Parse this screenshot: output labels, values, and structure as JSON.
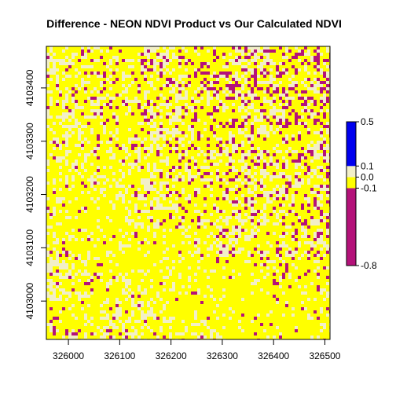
{
  "chart_data": {
    "type": "heatmap",
    "title": "Difference - NEON NDVI Product vs Our Calculated NDVI",
    "xlabel": "",
    "ylabel": "",
    "x_ticks": [
      326000,
      326100,
      326200,
      326300,
      326400,
      326500
    ],
    "y_ticks": [
      4103000,
      4103100,
      4103200,
      4103300,
      4103400
    ],
    "xlim": [
      325957,
      326510
    ],
    "ylim": [
      4102928,
      4103478
    ],
    "legend": {
      "placement": "right",
      "breaks": [
        -0.8,
        -0.1,
        0.0,
        0.1,
        0.5
      ],
      "tick_labels": [
        "0.5",
        "0.1",
        "0.0",
        "-0.1",
        "-0.8"
      ],
      "classes": [
        {
          "from": -0.8,
          "to": -0.1,
          "color": "#b4127a"
        },
        {
          "from": -0.1,
          "to": 0.0,
          "color": "#ffff00"
        },
        {
          "from": 0.0,
          "to": 0.1,
          "color": "#f2efc8"
        },
        {
          "from": 0.1,
          "to": 0.5,
          "color": "#0000ee"
        }
      ]
    },
    "class_fractions": {
      "-0.8 to -0.1": 0.1,
      "-0.1 to 0.0": 0.58,
      "0.0 to 0.1": 0.32,
      "0.1 to 0.5": 0.0
    },
    "grid": false
  }
}
